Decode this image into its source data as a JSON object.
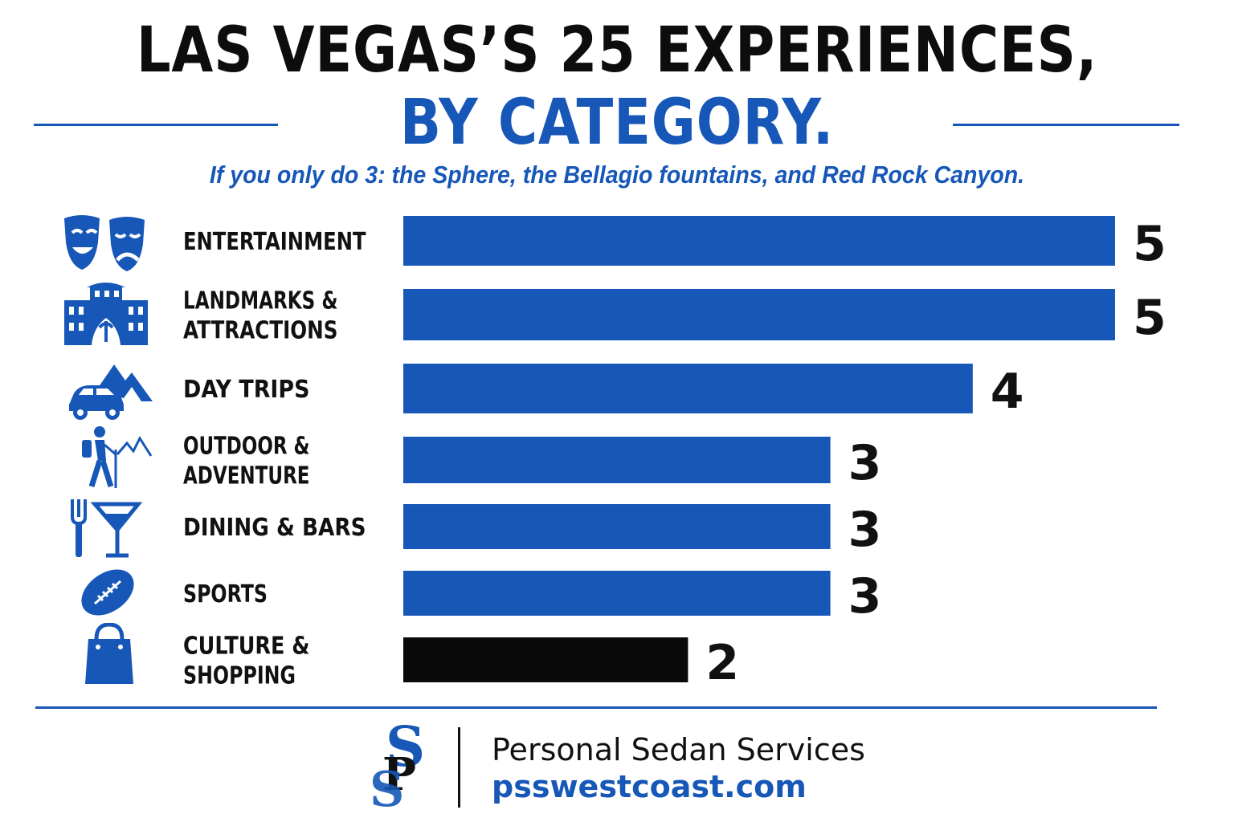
{
  "header": {
    "title_line1": "LAS VEGAS’S 25 EXPERIENCES,",
    "title_line2": "BY CATEGORY.",
    "subtitle": "If you only do 3: the Sphere, the Bellagio fountains, and Red Rock Canyon."
  },
  "colors": {
    "accent": "#1657b8",
    "highlight_bar": "#0a0a0a",
    "text": "#111111"
  },
  "chart_data": {
    "type": "bar",
    "orientation": "horizontal",
    "title": "LAS VEGAS’S 25 EXPERIENCES, BY CATEGORY.",
    "categories": [
      [
        "ENTERTAINMENT"
      ],
      [
        "LANDMARKS &",
        "ATTRACTIONS"
      ],
      [
        "DAY TRIPS"
      ],
      [
        "OUTDOOR &",
        "ADVENTURE"
      ],
      [
        "DINING & BARS"
      ],
      [
        "SPORTS"
      ],
      [
        "CULTURE &",
        "SHOPPING"
      ]
    ],
    "values": [
      5,
      5,
      4,
      3,
      3,
      3,
      2
    ],
    "icons": [
      "theater-masks-icon",
      "landmark-fountain-icon",
      "car-mountain-icon",
      "hiker-icon",
      "fork-cocktail-icon",
      "football-icon",
      "shopping-bag-icon"
    ],
    "bar_colors": [
      "#1657b8",
      "#1657b8",
      "#1657b8",
      "#1657b8",
      "#1657b8",
      "#1657b8",
      "#0a0a0a"
    ],
    "xlim": [
      0,
      5
    ],
    "grid": false,
    "legend": "none"
  },
  "footer": {
    "brand_name": "Personal Sedan Services",
    "url": "psswestcoast.com",
    "logo_letters": "PS"
  }
}
